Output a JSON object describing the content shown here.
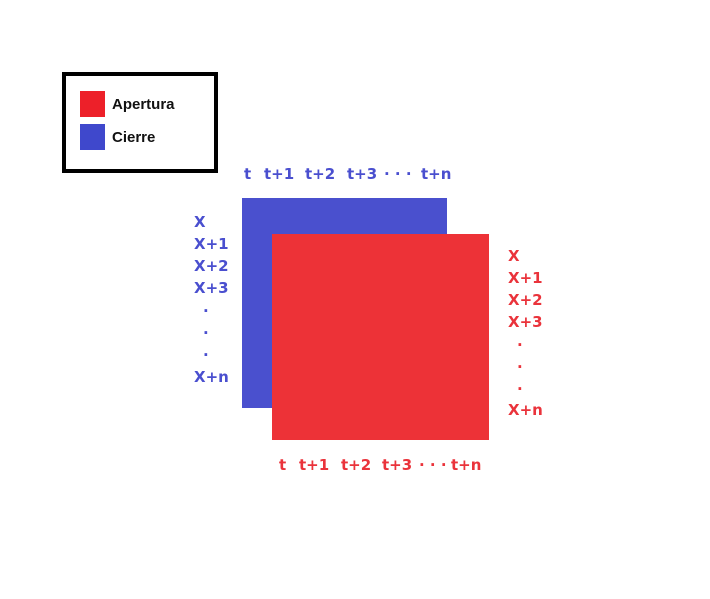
{
  "legend": {
    "items": [
      {
        "label": "Apertura",
        "color": "#ed2029"
      },
      {
        "label": "Cierre",
        "color": "#3f48cc"
      }
    ]
  },
  "colors": {
    "blue_square": "#4a50ce",
    "red_square": "#ed3237",
    "blue_text": "#4a4fcf",
    "red_text": "#ea333b"
  },
  "blue_layer": {
    "time_labels": [
      "t",
      "t+1",
      "t+2",
      "t+3",
      "· · ·",
      "t+n"
    ],
    "row_labels": [
      "X",
      "X+1",
      "X+2",
      "X+3",
      ".",
      ".",
      ".",
      "X+n"
    ]
  },
  "red_layer": {
    "time_labels": [
      "t",
      "t+1",
      "t+2",
      "t+3",
      "· · ·",
      "t+n"
    ],
    "row_labels": [
      "X",
      "X+1",
      "X+2",
      "X+3",
      ".",
      ".",
      ".",
      "X+n"
    ]
  }
}
